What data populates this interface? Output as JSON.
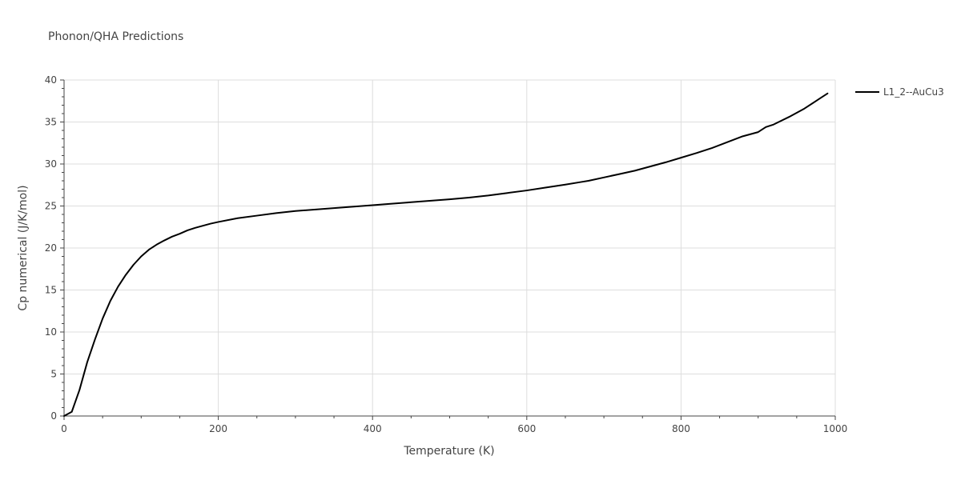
{
  "chart_data": {
    "type": "line",
    "title": "Phonon/QHA Predictions",
    "xlabel": "Temperature (K)",
    "ylabel": "Cp numerical (J/K/mol)",
    "xlim": [
      0,
      1000
    ],
    "ylim": [
      0,
      40
    ],
    "xticks": [
      0,
      200,
      400,
      600,
      800,
      1000
    ],
    "yticks": [
      0,
      5,
      10,
      15,
      20,
      25,
      30,
      35,
      40
    ],
    "grid": true,
    "legend_position": "top-right",
    "series": [
      {
        "name": "L1_2--AuCu3",
        "color": "#000000",
        "x": [
          0,
          10,
          20,
          30,
          40,
          50,
          60,
          70,
          80,
          90,
          100,
          110,
          120,
          130,
          140,
          150,
          160,
          170,
          180,
          190,
          200,
          225,
          250,
          275,
          300,
          350,
          400,
          450,
          500,
          525,
          550,
          575,
          600,
          625,
          650,
          670,
          680,
          700,
          720,
          740,
          760,
          780,
          800,
          820,
          840,
          860,
          880,
          900,
          910,
          920,
          940,
          960,
          980,
          990
        ],
        "y": [
          0,
          0.5,
          3.1,
          6.4,
          9.1,
          11.6,
          13.7,
          15.4,
          16.8,
          18.0,
          19.0,
          19.8,
          20.4,
          20.9,
          21.35,
          21.7,
          22.1,
          22.4,
          22.65,
          22.9,
          23.1,
          23.55,
          23.85,
          24.15,
          24.4,
          24.75,
          25.1,
          25.45,
          25.8,
          26.0,
          26.25,
          26.55,
          26.85,
          27.2,
          27.55,
          27.85,
          28.0,
          28.4,
          28.8,
          29.2,
          29.7,
          30.2,
          30.75,
          31.3,
          31.9,
          32.6,
          33.3,
          33.8,
          34.4,
          34.7,
          35.6,
          36.6,
          37.8,
          38.4
        ]
      }
    ]
  }
}
